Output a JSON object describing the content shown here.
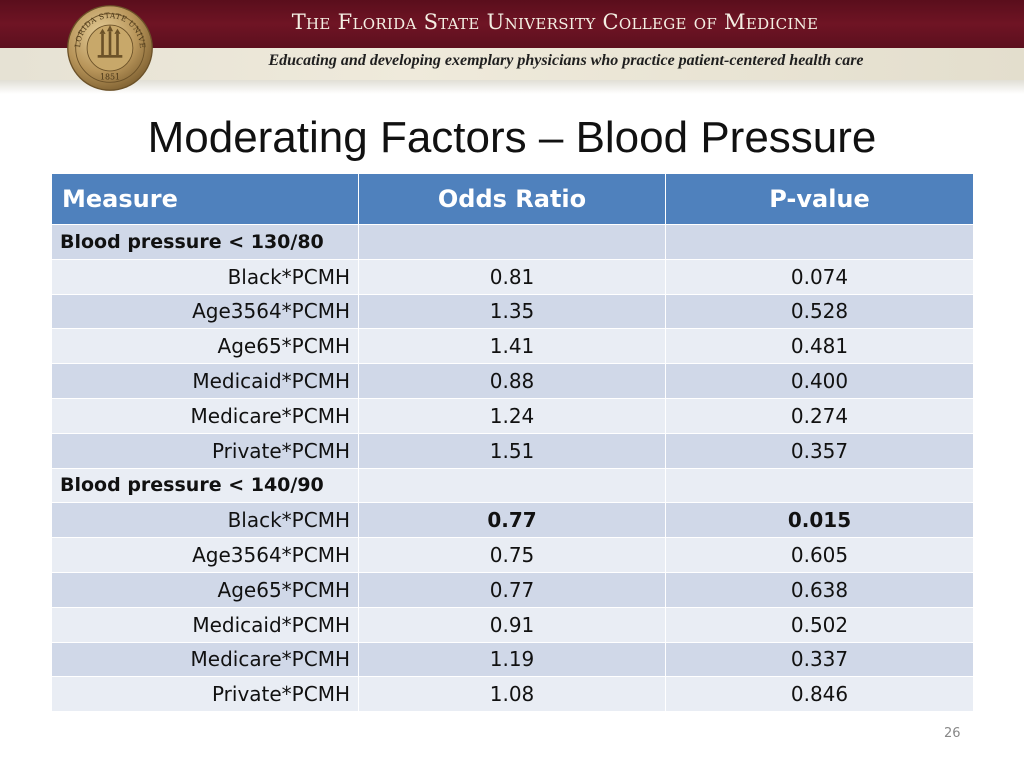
{
  "header": {
    "title": "The Florida State University College of Medicine",
    "tagline": "Educating and developing exemplary physicians who practice patient-centered health care",
    "seal": {
      "top_text": "THE FLORIDA STATE UNIVERSITY",
      "year": "1851"
    }
  },
  "colors": {
    "header_bg": "#6f1424",
    "table_header_bg": "#4f81bd",
    "row_band_dark": "#d0d8e8",
    "row_band_light": "#e9edf4",
    "seal_gold": "#b8955a"
  },
  "slide": {
    "title": "Moderating Factors – Blood Pressure",
    "page_number": "26"
  },
  "table": {
    "headers": [
      "Measure",
      "Odds Ratio",
      "P-value"
    ],
    "rows": [
      {
        "section": true,
        "measure": "Blood pressure < 130/80",
        "odds_ratio": "",
        "p_value": ""
      },
      {
        "section": false,
        "measure": "Black*PCMH",
        "odds_ratio": "0.81",
        "p_value": "0.074"
      },
      {
        "section": false,
        "measure": "Age3564*PCMH",
        "odds_ratio": "1.35",
        "p_value": "0.528"
      },
      {
        "section": false,
        "measure": "Age65*PCMH",
        "odds_ratio": "1.41",
        "p_value": "0.481"
      },
      {
        "section": false,
        "measure": "Medicaid*PCMH",
        "odds_ratio": "0.88",
        "p_value": "0.400"
      },
      {
        "section": false,
        "measure": "Medicare*PCMH",
        "odds_ratio": "1.24",
        "p_value": "0.274"
      },
      {
        "section": false,
        "measure": "Private*PCMH",
        "odds_ratio": "1.51",
        "p_value": "0.357"
      },
      {
        "section": true,
        "measure": "Blood pressure < 140/90",
        "odds_ratio": "",
        "p_value": ""
      },
      {
        "section": false,
        "measure": "Black*PCMH",
        "odds_ratio": "0.77",
        "p_value": "0.015",
        "bold": true
      },
      {
        "section": false,
        "measure": "Age3564*PCMH",
        "odds_ratio": "0.75",
        "p_value": "0.605"
      },
      {
        "section": false,
        "measure": "Age65*PCMH",
        "odds_ratio": "0.77",
        "p_value": "0.638"
      },
      {
        "section": false,
        "measure": "Medicaid*PCMH",
        "odds_ratio": "0.91",
        "p_value": "0.502"
      },
      {
        "section": false,
        "measure": "Medicare*PCMH",
        "odds_ratio": "1.19",
        "p_value": "0.337"
      },
      {
        "section": false,
        "measure": "Private*PCMH",
        "odds_ratio": "1.08",
        "p_value": "0.846"
      }
    ]
  }
}
